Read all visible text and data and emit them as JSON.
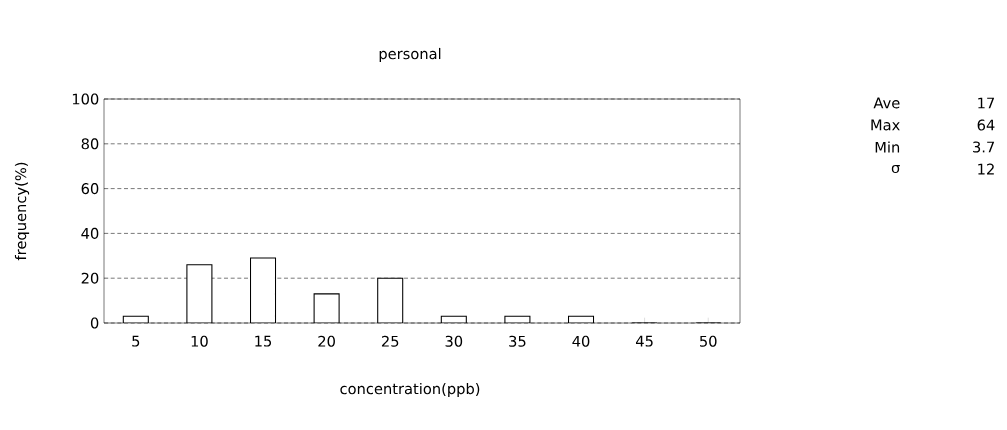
{
  "chart_data": {
    "type": "bar",
    "title": "personal",
    "xlabel": "concentration(ppb)",
    "ylabel": "frequency(%)",
    "categories": [
      "5",
      "10",
      "15",
      "20",
      "25",
      "30",
      "35",
      "40",
      "45",
      "50"
    ],
    "values": [
      3,
      26,
      29,
      13,
      20,
      3,
      3,
      3,
      0,
      0
    ],
    "color": "#ffffff",
    "ylim": [
      0,
      100
    ],
    "yticks": [
      0,
      20,
      40,
      60,
      80,
      100
    ],
    "grid": "y",
    "annotations": [
      "Ave",
      "17",
      "Max",
      "64",
      "Min",
      "3.7",
      "σ",
      "12"
    ]
  }
}
